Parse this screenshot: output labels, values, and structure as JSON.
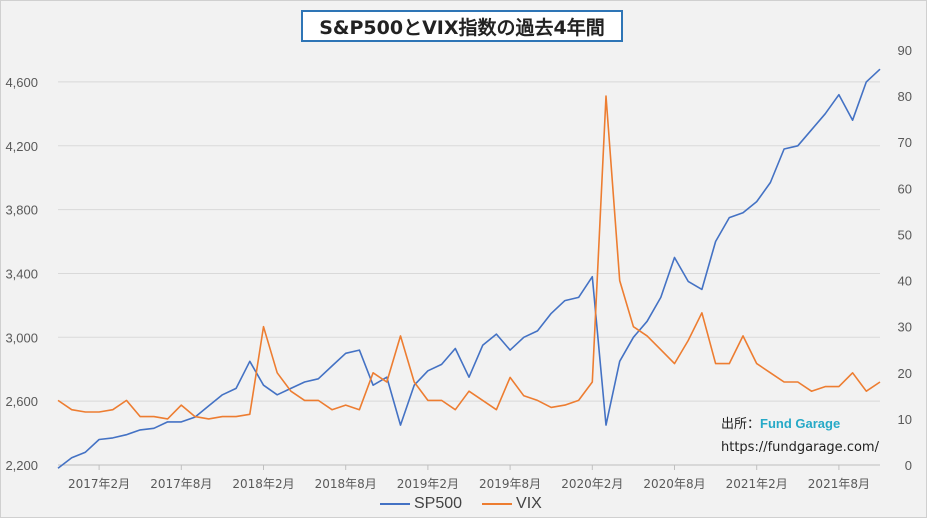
{
  "title": "S&P500とVIX指数の過去4年間",
  "credit": {
    "prefix": "出所：",
    "brand": "Fund Garage",
    "url": "https://fundgarage.com/"
  },
  "colors": {
    "sp500": "#4472c4",
    "vix": "#ed7d31",
    "grid": "#d9d9d9",
    "axis_text": "#595959",
    "title_border": "#2e75b6"
  },
  "chart_data": {
    "type": "line",
    "x_tick_labels": [
      "2017年2月",
      "2017年8月",
      "2018年2月",
      "2018年8月",
      "2019年2月",
      "2019年8月",
      "2020年2月",
      "2020年8月",
      "2021年2月",
      "2021年8月"
    ],
    "y_left": {
      "ticks": [
        "2,200",
        "2,600",
        "3,000",
        "3,400",
        "3,800",
        "4,200",
        "4,600"
      ],
      "lim": [
        2200,
        4800
      ]
    },
    "y_right": {
      "ticks": [
        "0",
        "10",
        "20",
        "30",
        "40",
        "50",
        "60",
        "70",
        "80",
        "90"
      ],
      "lim": [
        0,
        90
      ]
    },
    "series": [
      {
        "name": "SP500",
        "axis": "left",
        "x": [
          "2016-11",
          "2016-12",
          "2017-01",
          "2017-02",
          "2017-03",
          "2017-04",
          "2017-05",
          "2017-06",
          "2017-07",
          "2017-08",
          "2017-09",
          "2017-10",
          "2017-11",
          "2017-12",
          "2018-01",
          "2018-02",
          "2018-03",
          "2018-04",
          "2018-05",
          "2018-06",
          "2018-07",
          "2018-08",
          "2018-09",
          "2018-10",
          "2018-11",
          "2018-12",
          "2019-01",
          "2019-02",
          "2019-03",
          "2019-04",
          "2019-05",
          "2019-06",
          "2019-07",
          "2019-08",
          "2019-09",
          "2019-10",
          "2019-11",
          "2019-12",
          "2020-01",
          "2020-02",
          "2020-03",
          "2020-04",
          "2020-05",
          "2020-06",
          "2020-07",
          "2020-08",
          "2020-09",
          "2020-10",
          "2020-11",
          "2020-12",
          "2021-01",
          "2021-02",
          "2021-03",
          "2021-04",
          "2021-05",
          "2021-06",
          "2021-07",
          "2021-08",
          "2021-09",
          "2021-10",
          "2021-11"
        ],
        "values": [
          2180,
          2245,
          2280,
          2360,
          2370,
          2390,
          2420,
          2430,
          2470,
          2470,
          2500,
          2570,
          2640,
          2680,
          2850,
          2700,
          2640,
          2680,
          2720,
          2740,
          2820,
          2900,
          2920,
          2700,
          2750,
          2450,
          2700,
          2790,
          2830,
          2930,
          2750,
          2950,
          3020,
          2920,
          3000,
          3040,
          3150,
          3230,
          3250,
          3380,
          2450,
          2850,
          3000,
          3100,
          3250,
          3500,
          3350,
          3300,
          3600,
          3750,
          3780,
          3850,
          3970,
          4180,
          4200,
          4300,
          4400,
          4520,
          4360,
          4600,
          4680
        ]
      },
      {
        "name": "VIX",
        "axis": "right",
        "x": [
          "2016-11",
          "2016-12",
          "2017-01",
          "2017-02",
          "2017-03",
          "2017-04",
          "2017-05",
          "2017-06",
          "2017-07",
          "2017-08",
          "2017-09",
          "2017-10",
          "2017-11",
          "2017-12",
          "2018-01",
          "2018-02",
          "2018-03",
          "2018-04",
          "2018-05",
          "2018-06",
          "2018-07",
          "2018-08",
          "2018-09",
          "2018-10",
          "2018-11",
          "2018-12",
          "2019-01",
          "2019-02",
          "2019-03",
          "2019-04",
          "2019-05",
          "2019-06",
          "2019-07",
          "2019-08",
          "2019-09",
          "2019-10",
          "2019-11",
          "2019-12",
          "2020-01",
          "2020-02",
          "2020-03",
          "2020-04",
          "2020-05",
          "2020-06",
          "2020-07",
          "2020-08",
          "2020-09",
          "2020-10",
          "2020-11",
          "2020-12",
          "2021-01",
          "2021-02",
          "2021-03",
          "2021-04",
          "2021-05",
          "2021-06",
          "2021-07",
          "2021-08",
          "2021-09",
          "2021-10",
          "2021-11"
        ],
        "values": [
          14,
          12,
          11.5,
          11.5,
          12,
          14,
          10.5,
          10.5,
          10,
          13,
          10.5,
          10,
          10.5,
          10.5,
          11,
          30,
          20,
          16,
          14,
          14,
          12,
          13,
          12,
          20,
          18,
          28,
          18,
          14,
          14,
          12,
          16,
          14,
          12,
          19,
          15,
          14,
          12.5,
          13,
          14,
          18,
          80,
          40,
          30,
          28,
          25,
          22,
          27,
          33,
          22,
          22,
          28,
          22,
          20,
          18,
          18,
          16,
          17,
          17,
          20,
          16,
          18
        ]
      }
    ]
  },
  "legend": [
    {
      "label": "SP500"
    },
    {
      "label": "VIX"
    }
  ]
}
